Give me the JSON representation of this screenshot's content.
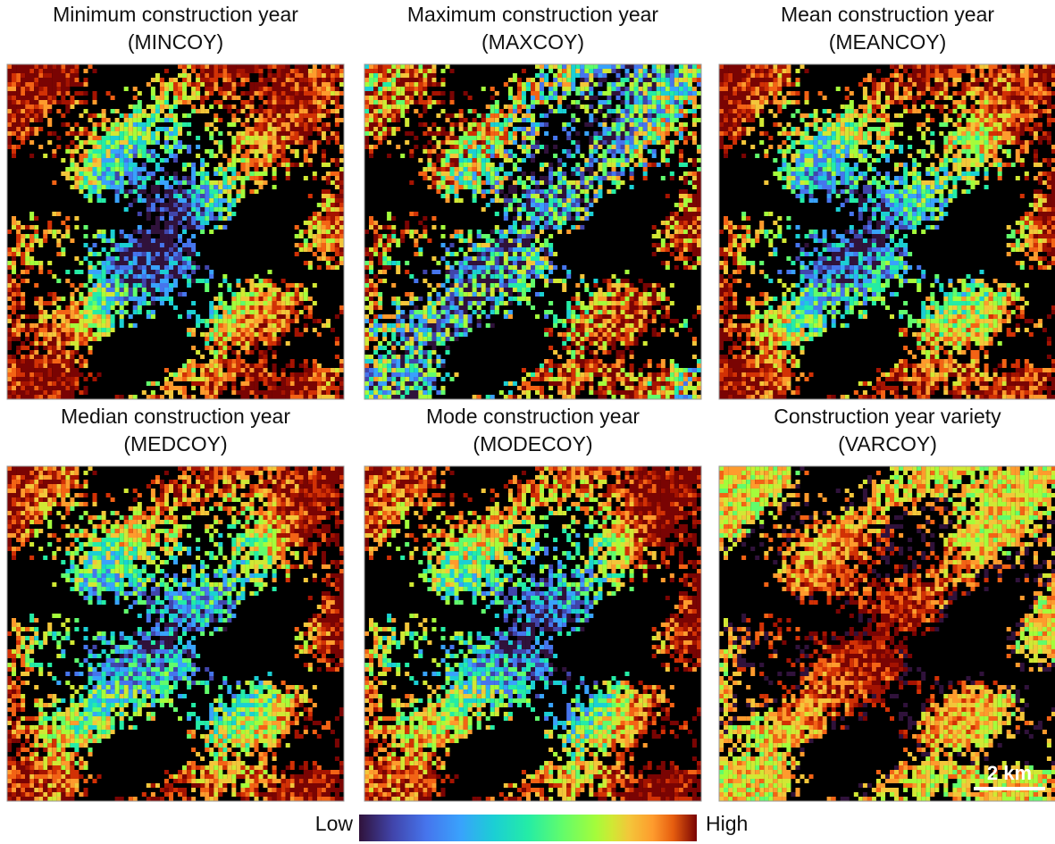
{
  "panels": [
    {
      "title": "Minimum construction year",
      "code": "(MINCOY)"
    },
    {
      "title": "Maximum construction year",
      "code": "(MAXCOY)"
    },
    {
      "title": "Mean construction year",
      "code": "(MEANCOY)"
    },
    {
      "title": "Median construction year",
      "code": "(MEDCOY)"
    },
    {
      "title": "Mode construction year",
      "code": "(MODECOY)"
    },
    {
      "title": "Construction year variety",
      "code": "(VARCOY)"
    }
  ],
  "colorbar": {
    "low": "Low",
    "high": "High"
  },
  "scale_bar": "2 km"
}
